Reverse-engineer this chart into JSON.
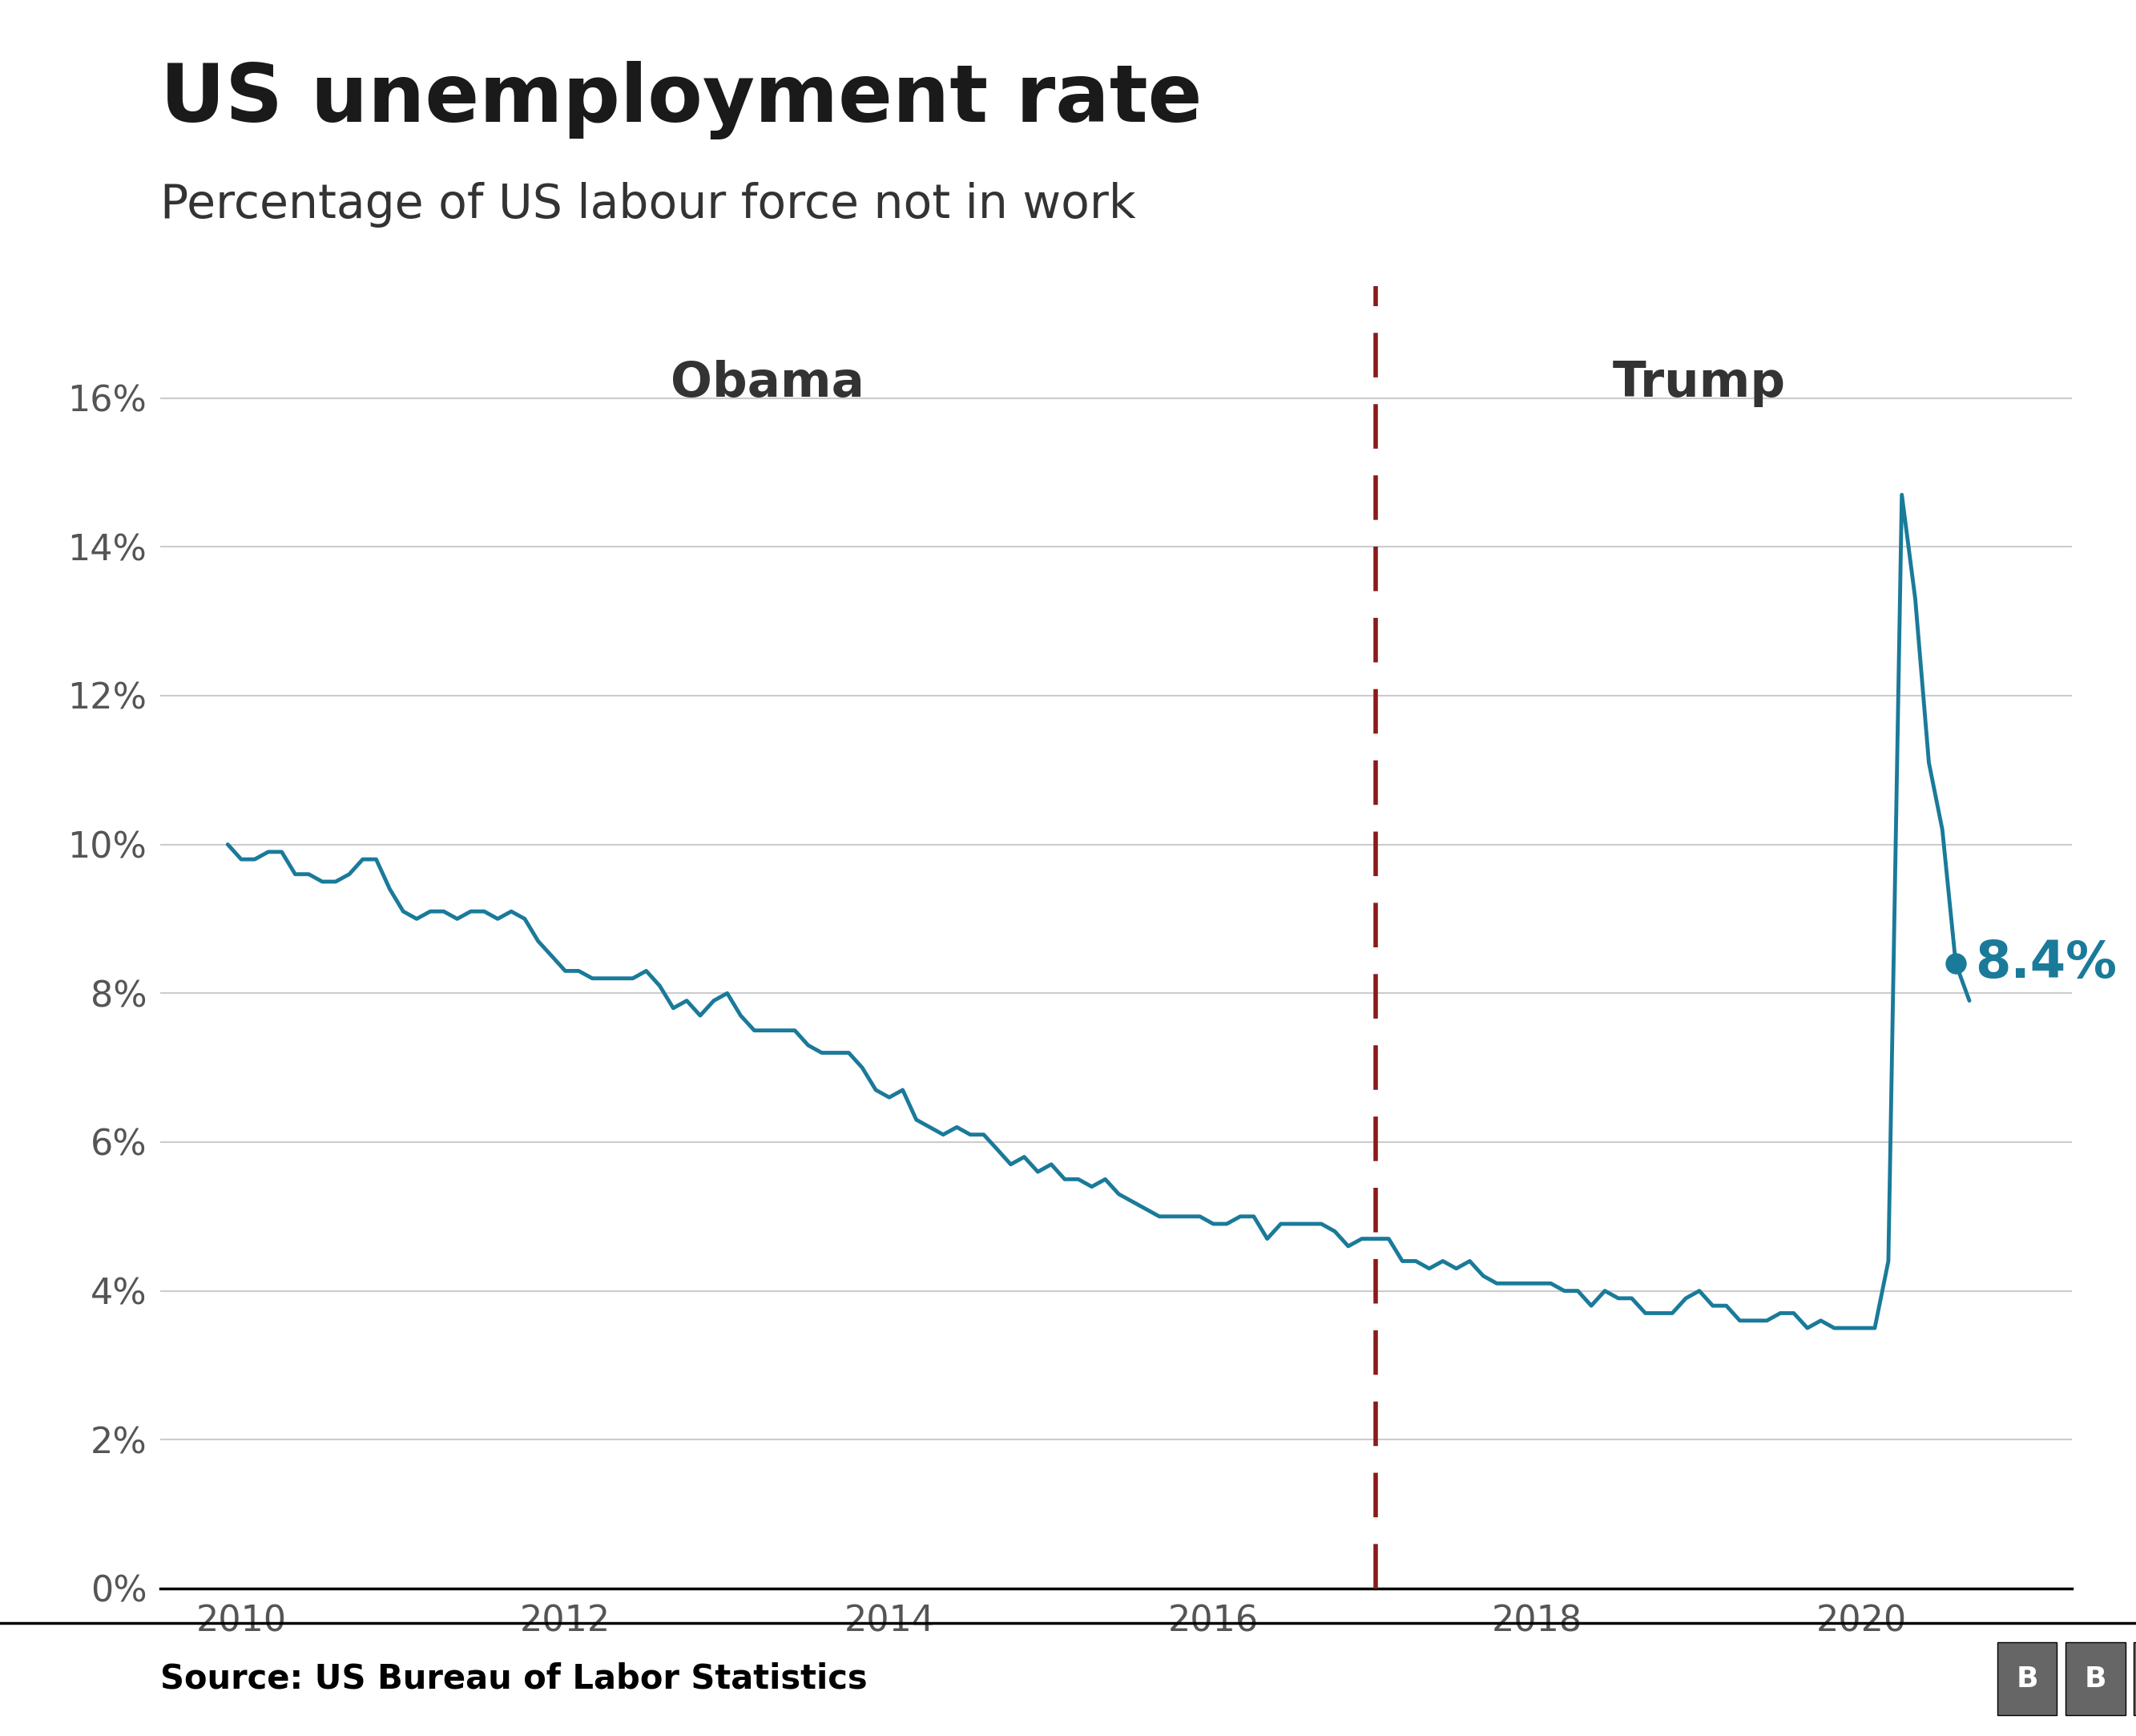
{
  "title": "US unemployment rate",
  "subtitle": "Percentage of US labour force not in work",
  "source": "Source: US Bureau of Labor Statistics",
  "line_color": "#1a7a9a",
  "dashed_line_color": "#8b1a1a",
  "annotation_text": "8.4%",
  "annotation_color": "#1a7a9a",
  "obama_label": "Obama",
  "trump_label": "Trump",
  "label_color": "#333333",
  "divide_year": 2017,
  "background_color": "#ffffff",
  "grid_color": "#cccccc",
  "xlim": [
    2009.5,
    2021.3
  ],
  "ylim": [
    0,
    17.5
  ],
  "yticks": [
    0,
    2,
    4,
    6,
    8,
    10,
    12,
    14,
    16
  ],
  "xticks": [
    2010,
    2012,
    2014,
    2016,
    2018,
    2020
  ],
  "unemployment_data": [
    [
      2009.917,
      10.0
    ],
    [
      2010.0,
      9.8
    ],
    [
      2010.083,
      9.8
    ],
    [
      2010.167,
      9.9
    ],
    [
      2010.25,
      9.9
    ],
    [
      2010.333,
      9.6
    ],
    [
      2010.417,
      9.6
    ],
    [
      2010.5,
      9.5
    ],
    [
      2010.583,
      9.5
    ],
    [
      2010.667,
      9.6
    ],
    [
      2010.75,
      9.8
    ],
    [
      2010.833,
      9.8
    ],
    [
      2010.917,
      9.4
    ],
    [
      2011.0,
      9.1
    ],
    [
      2011.083,
      9.0
    ],
    [
      2011.167,
      9.1
    ],
    [
      2011.25,
      9.1
    ],
    [
      2011.333,
      9.0
    ],
    [
      2011.417,
      9.1
    ],
    [
      2011.5,
      9.1
    ],
    [
      2011.583,
      9.0
    ],
    [
      2011.667,
      9.1
    ],
    [
      2011.75,
      9.0
    ],
    [
      2011.833,
      8.7
    ],
    [
      2011.917,
      8.5
    ],
    [
      2012.0,
      8.3
    ],
    [
      2012.083,
      8.3
    ],
    [
      2012.167,
      8.2
    ],
    [
      2012.25,
      8.2
    ],
    [
      2012.333,
      8.2
    ],
    [
      2012.417,
      8.2
    ],
    [
      2012.5,
      8.3
    ],
    [
      2012.583,
      8.1
    ],
    [
      2012.667,
      7.8
    ],
    [
      2012.75,
      7.9
    ],
    [
      2012.833,
      7.7
    ],
    [
      2012.917,
      7.9
    ],
    [
      2013.0,
      8.0
    ],
    [
      2013.083,
      7.7
    ],
    [
      2013.167,
      7.5
    ],
    [
      2013.25,
      7.5
    ],
    [
      2013.333,
      7.5
    ],
    [
      2013.417,
      7.5
    ],
    [
      2013.5,
      7.3
    ],
    [
      2013.583,
      7.2
    ],
    [
      2013.667,
      7.2
    ],
    [
      2013.75,
      7.2
    ],
    [
      2013.833,
      7.0
    ],
    [
      2013.917,
      6.7
    ],
    [
      2014.0,
      6.6
    ],
    [
      2014.083,
      6.7
    ],
    [
      2014.167,
      6.3
    ],
    [
      2014.25,
      6.2
    ],
    [
      2014.333,
      6.1
    ],
    [
      2014.417,
      6.2
    ],
    [
      2014.5,
      6.1
    ],
    [
      2014.583,
      6.1
    ],
    [
      2014.667,
      5.9
    ],
    [
      2014.75,
      5.7
    ],
    [
      2014.833,
      5.8
    ],
    [
      2014.917,
      5.6
    ],
    [
      2015.0,
      5.7
    ],
    [
      2015.083,
      5.5
    ],
    [
      2015.167,
      5.5
    ],
    [
      2015.25,
      5.4
    ],
    [
      2015.333,
      5.5
    ],
    [
      2015.417,
      5.3
    ],
    [
      2015.5,
      5.2
    ],
    [
      2015.583,
      5.1
    ],
    [
      2015.667,
      5.0
    ],
    [
      2015.75,
      5.0
    ],
    [
      2015.833,
      5.0
    ],
    [
      2015.917,
      5.0
    ],
    [
      2016.0,
      4.9
    ],
    [
      2016.083,
      4.9
    ],
    [
      2016.167,
      5.0
    ],
    [
      2016.25,
      5.0
    ],
    [
      2016.333,
      4.7
    ],
    [
      2016.417,
      4.9
    ],
    [
      2016.5,
      4.9
    ],
    [
      2016.583,
      4.9
    ],
    [
      2016.667,
      4.9
    ],
    [
      2016.75,
      4.8
    ],
    [
      2016.833,
      4.6
    ],
    [
      2016.917,
      4.7
    ],
    [
      2017.0,
      4.7
    ],
    [
      2017.083,
      4.7
    ],
    [
      2017.167,
      4.4
    ],
    [
      2017.25,
      4.4
    ],
    [
      2017.333,
      4.3
    ],
    [
      2017.417,
      4.4
    ],
    [
      2017.5,
      4.3
    ],
    [
      2017.583,
      4.4
    ],
    [
      2017.667,
      4.2
    ],
    [
      2017.75,
      4.1
    ],
    [
      2017.833,
      4.1
    ],
    [
      2017.917,
      4.1
    ],
    [
      2018.0,
      4.1
    ],
    [
      2018.083,
      4.1
    ],
    [
      2018.167,
      4.0
    ],
    [
      2018.25,
      4.0
    ],
    [
      2018.333,
      3.8
    ],
    [
      2018.417,
      4.0
    ],
    [
      2018.5,
      3.9
    ],
    [
      2018.583,
      3.9
    ],
    [
      2018.667,
      3.7
    ],
    [
      2018.75,
      3.7
    ],
    [
      2018.833,
      3.7
    ],
    [
      2018.917,
      3.9
    ],
    [
      2019.0,
      4.0
    ],
    [
      2019.083,
      3.8
    ],
    [
      2019.167,
      3.8
    ],
    [
      2019.25,
      3.6
    ],
    [
      2019.333,
      3.6
    ],
    [
      2019.417,
      3.6
    ],
    [
      2019.5,
      3.7
    ],
    [
      2019.583,
      3.7
    ],
    [
      2019.667,
      3.5
    ],
    [
      2019.75,
      3.6
    ],
    [
      2019.833,
      3.5
    ],
    [
      2019.917,
      3.5
    ],
    [
      2020.0,
      3.5
    ],
    [
      2020.083,
      3.5
    ],
    [
      2020.167,
      4.4
    ],
    [
      2020.25,
      14.7
    ],
    [
      2020.333,
      13.3
    ],
    [
      2020.417,
      11.1
    ],
    [
      2020.5,
      10.2
    ],
    [
      2020.583,
      8.4
    ],
    [
      2020.667,
      7.9
    ]
  ],
  "endpoint_x": 2020.583,
  "endpoint_y": 8.4,
  "bbc_box_color": "#666666",
  "bbc_text_color": "#ffffff",
  "footer_line_color": "#000000",
  "source_text_color": "#000000",
  "obama_x": 2013.25,
  "obama_y": 16.2,
  "trump_x": 2019.0,
  "trump_y": 16.2
}
